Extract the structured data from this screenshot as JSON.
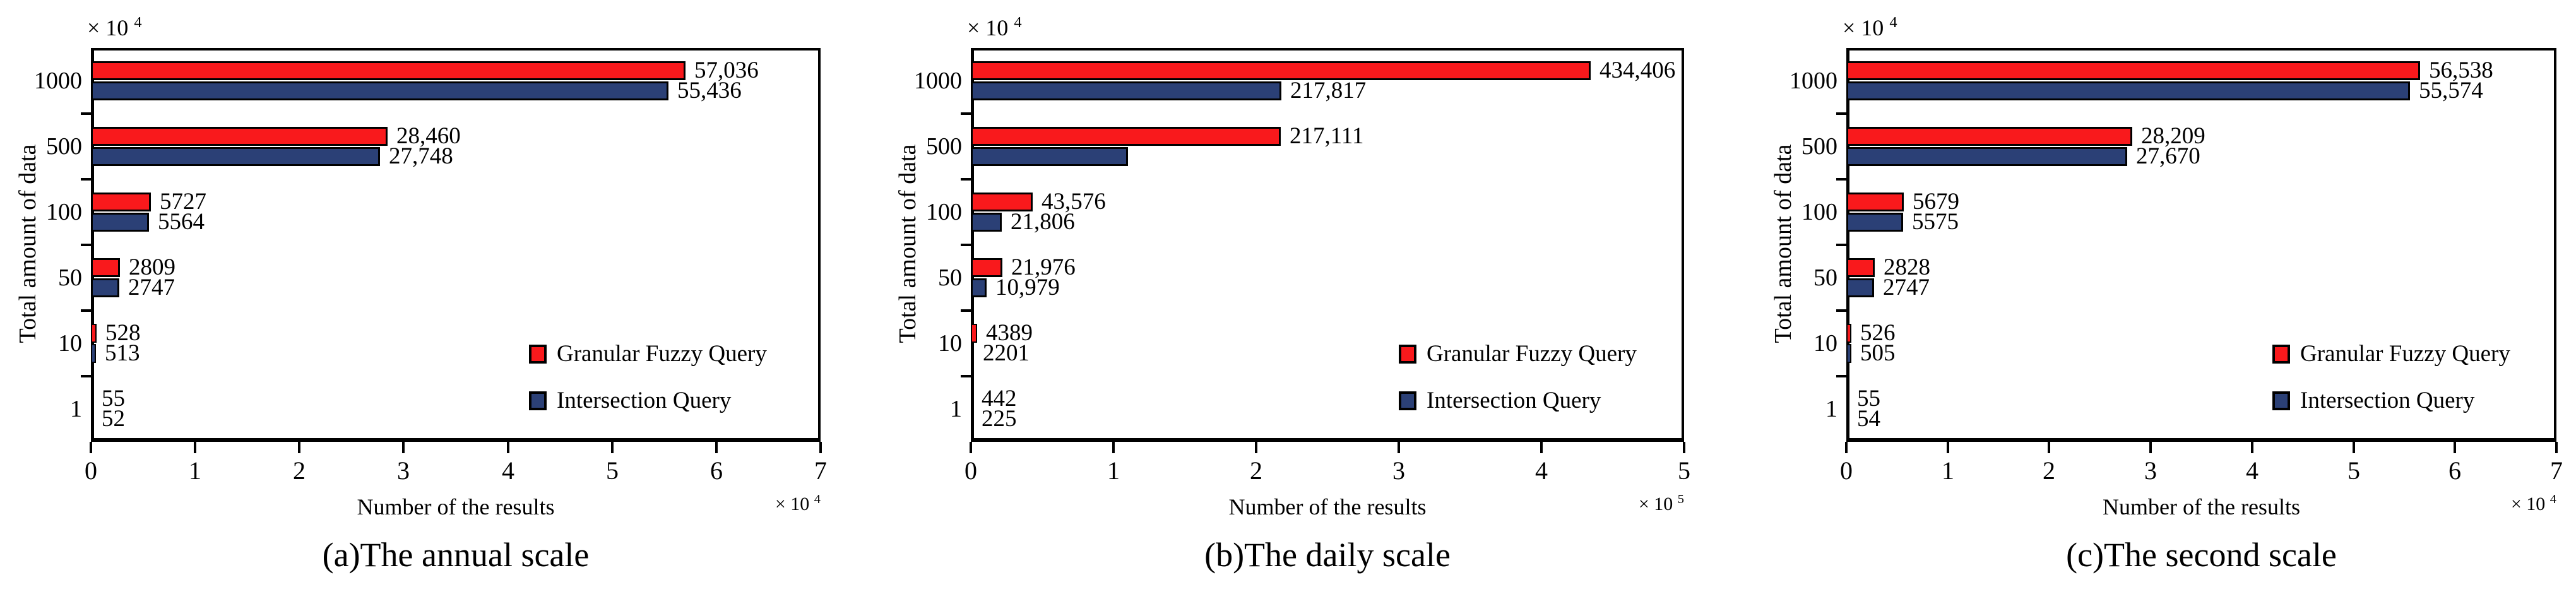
{
  "figure": {
    "background": "#ffffff",
    "bar_border_color": "#000000",
    "series_colors": {
      "granular_fuzzy_query": "#f9191c",
      "intersection_query": "#2b4076"
    },
    "legend": {
      "items": [
        {
          "label": "Granular Fuzzy Query",
          "color": "#f9191c"
        },
        {
          "label": "Intersection Query",
          "color": "#2b4076"
        }
      ],
      "position": "inside-lower-right"
    }
  },
  "chart_data": [
    {
      "type": "bar",
      "orientation": "horizontal",
      "caption": "(a)The annual scale",
      "xlabel": "Number of the results",
      "ylabel": "Total amount of data",
      "x_axis_multiplier": {
        "base": "× 10",
        "exp": "4"
      },
      "y_axis_multiplier": {
        "base": "× 10",
        "exp": "4"
      },
      "categories": [
        "1000",
        "500",
        "100",
        "50",
        "10",
        "1"
      ],
      "xlim": [
        0,
        70000
      ],
      "xticks": [
        "0",
        "1",
        "2",
        "3",
        "4",
        "5",
        "6",
        "7"
      ],
      "grid": false,
      "series": [
        {
          "name": "Granular Fuzzy Query",
          "color": "#f9191c",
          "values": [
            57036,
            28460,
            5727,
            2809,
            528,
            55
          ],
          "labels": [
            "57,036",
            "28,460",
            "5727",
            "2809",
            "528",
            "55"
          ]
        },
        {
          "name": "Intersection Query",
          "color": "#2b4076",
          "values": [
            55436,
            27748,
            5564,
            2747,
            513,
            52
          ],
          "labels": [
            "55,436",
            "27,748",
            "5564",
            "2747",
            "513",
            "52"
          ]
        }
      ]
    },
    {
      "type": "bar",
      "orientation": "horizontal",
      "caption": "(b)The daily scale",
      "xlabel": "Number of the results",
      "ylabel": "Total amount of data",
      "x_axis_multiplier": {
        "base": "× 10",
        "exp": "5"
      },
      "y_axis_multiplier": {
        "base": "× 10",
        "exp": "4"
      },
      "categories": [
        "1000",
        "500",
        "100",
        "50",
        "10",
        "1"
      ],
      "xlim": [
        0,
        500000
      ],
      "xticks": [
        "0",
        "1",
        "2",
        "3",
        "4",
        "5"
      ],
      "grid": false,
      "note": "Intersection bar of the 500 category is drawn (length ~1.1 x 10^5) but has no numeric label in the original figure",
      "series": [
        {
          "name": "Granular Fuzzy Query",
          "color": "#f9191c",
          "values": [
            434406,
            217111,
            43576,
            21976,
            4389,
            442
          ],
          "labels": [
            "434,406",
            "217,111",
            "43,576",
            "21,976",
            "4389",
            "442"
          ]
        },
        {
          "name": "Intersection Query",
          "color": "#2b4076",
          "values": [
            217817,
            110000,
            21806,
            10979,
            2201,
            225
          ],
          "labels": [
            "217,817",
            "",
            "21,806",
            "10,979",
            "2201",
            "225"
          ]
        }
      ]
    },
    {
      "type": "bar",
      "orientation": "horizontal",
      "caption": "(c)The second scale",
      "xlabel": "Number of the results",
      "ylabel": "Total amount of data",
      "x_axis_multiplier": {
        "base": "× 10",
        "exp": "4"
      },
      "y_axis_multiplier": {
        "base": "× 10",
        "exp": "4"
      },
      "categories": [
        "1000",
        "500",
        "100",
        "50",
        "10",
        "1"
      ],
      "xlim": [
        0,
        70000
      ],
      "xticks": [
        "0",
        "1",
        "2",
        "3",
        "4",
        "5",
        "6",
        "7"
      ],
      "grid": false,
      "series": [
        {
          "name": "Granular Fuzzy Query",
          "color": "#f9191c",
          "values": [
            56538,
            28209,
            5679,
            2828,
            526,
            55
          ],
          "labels": [
            "56,538",
            "28,209",
            "5679",
            "2828",
            "526",
            "55"
          ]
        },
        {
          "name": "Intersection Query",
          "color": "#2b4076",
          "values": [
            55574,
            27670,
            5575,
            2747,
            505,
            54
          ],
          "labels": [
            "55,574",
            "27,670",
            "5575",
            "2747",
            "505",
            "54"
          ]
        }
      ]
    }
  ]
}
